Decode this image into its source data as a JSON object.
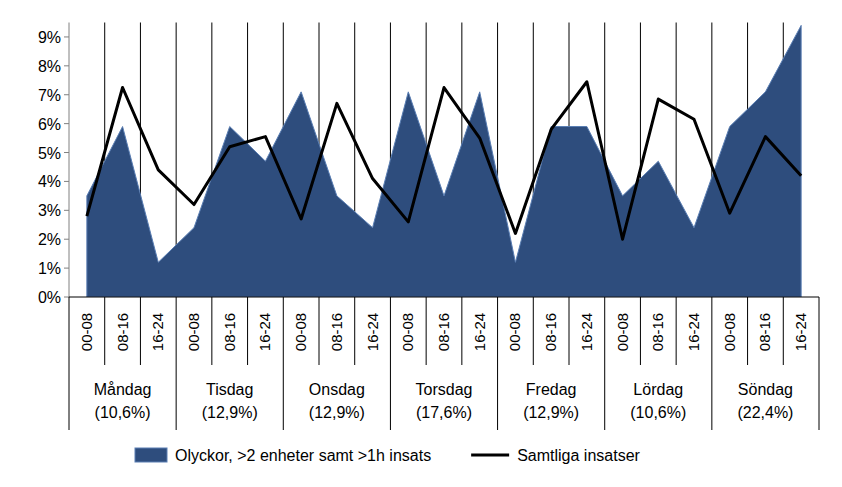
{
  "chart_data": {
    "type": "area",
    "categories": [
      "00-08",
      "08-16",
      "16-24",
      "00-08",
      "08-16",
      "16-24",
      "00-08",
      "08-16",
      "16-24",
      "00-08",
      "08-16",
      "16-24",
      "00-08",
      "08-16",
      "16-24",
      "00-08",
      "08-16",
      "16-24",
      "00-08",
      "08-16",
      "16-24"
    ],
    "groups": [
      {
        "name": "Måndag",
        "label": "(10,6%)"
      },
      {
        "name": "Tisdag",
        "label": "(12,9%)"
      },
      {
        "name": "Onsdag",
        "label": "(12,9%)"
      },
      {
        "name": "Torsdag",
        "label": "(17,6%)"
      },
      {
        "name": "Fredag",
        "label": "(12,9%)"
      },
      {
        "name": "Lördag",
        "label": "(10,6%)"
      },
      {
        "name": "Söndag",
        "label": "(22,4%)"
      }
    ],
    "series": [
      {
        "name": "Olyckor, >2 enheter samt >1h insats",
        "type": "area",
        "color": "#2e4d7d",
        "values": [
          3.5,
          5.9,
          1.2,
          2.4,
          5.9,
          4.7,
          7.1,
          3.5,
          2.4,
          7.1,
          3.5,
          7.1,
          1.2,
          5.9,
          5.9,
          3.5,
          4.7,
          2.4,
          5.9,
          7.1,
          9.4
        ]
      },
      {
        "name": "Samtliga insatser",
        "type": "line",
        "color": "#000000",
        "line_style": "solid",
        "values": [
          2.8,
          7.25,
          4.4,
          3.2,
          5.2,
          5.55,
          2.7,
          6.7,
          4.1,
          2.6,
          7.25,
          5.5,
          2.2,
          5.8,
          7.45,
          2.0,
          6.85,
          6.15,
          2.9,
          5.55,
          4.2
        ]
      }
    ],
    "ylim": [
      0,
      9.5
    ],
    "yticks": [
      {
        "value": 0,
        "label": "0%"
      },
      {
        "value": 1,
        "label": "1%"
      },
      {
        "value": 2,
        "label": "2%"
      },
      {
        "value": 3,
        "label": "3%"
      },
      {
        "value": 4,
        "label": "4%"
      },
      {
        "value": 5,
        "label": "5%"
      },
      {
        "value": 6,
        "label": "6%"
      },
      {
        "value": 7,
        "label": "7%"
      },
      {
        "value": 8,
        "label": "8%"
      },
      {
        "value": 9,
        "label": "9%"
      }
    ],
    "grid": true,
    "legend": "bottom"
  }
}
